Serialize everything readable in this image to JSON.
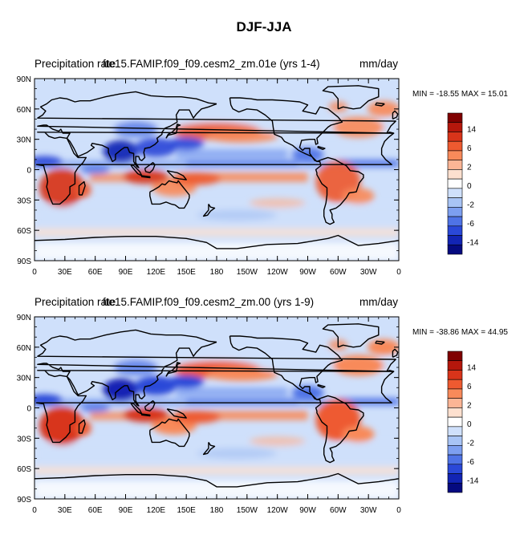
{
  "title": "DJF-JJA",
  "chart_data": [
    {
      "type": "heatmap",
      "title_left": "Precipitation rate",
      "case_label": "fte15.FAMIP.f09_f09.cesm2_zm.01e (yrs 1-4)",
      "units": "mm/day",
      "min_max_text": "MIN = -18.55 MAX =  15.01",
      "min": -18.55,
      "max": 15.01,
      "x_ticks": [
        "0",
        "30E",
        "60E",
        "90E",
        "120E",
        "150E",
        "180",
        "150W",
        "120W",
        "90W",
        "60W",
        "30W",
        "0"
      ],
      "y_ticks": [
        "90N",
        "60N",
        "30N",
        "0",
        "30S",
        "60S",
        "90S"
      ],
      "colorbar_levels": [
        "14",
        "6",
        "2",
        "0",
        "-2",
        "-6",
        "-14"
      ]
    },
    {
      "type": "heatmap",
      "title_left": "Precipitation rate",
      "case_label": "fte15.FAMIP.f09_f09.cesm2_zm.00 (yrs 1-9)",
      "units": "mm/day",
      "min_max_text": "MIN = -38.86 MAX =  44.95",
      "min": -38.86,
      "max": 44.95,
      "x_ticks": [
        "0",
        "30E",
        "60E",
        "90E",
        "120E",
        "150E",
        "180",
        "150W",
        "120W",
        "90W",
        "60W",
        "30W",
        "0"
      ],
      "y_ticks": [
        "90N",
        "60N",
        "30N",
        "0",
        "30S",
        "60S",
        "90S"
      ],
      "colorbar_levels": [
        "14",
        "6",
        "2",
        "0",
        "-2",
        "-6",
        "-14"
      ]
    }
  ],
  "colors": {
    "scale": [
      "#800000",
      "#b5170c",
      "#d8341a",
      "#ee5a30",
      "#f88a5a",
      "#fbb595",
      "#fde0cf",
      "#ffffff",
      "#cfe0fb",
      "#a8c4f5",
      "#7d9ff0",
      "#4f73e6",
      "#2a48d8",
      "#1224b4",
      "#050a80"
    ]
  }
}
